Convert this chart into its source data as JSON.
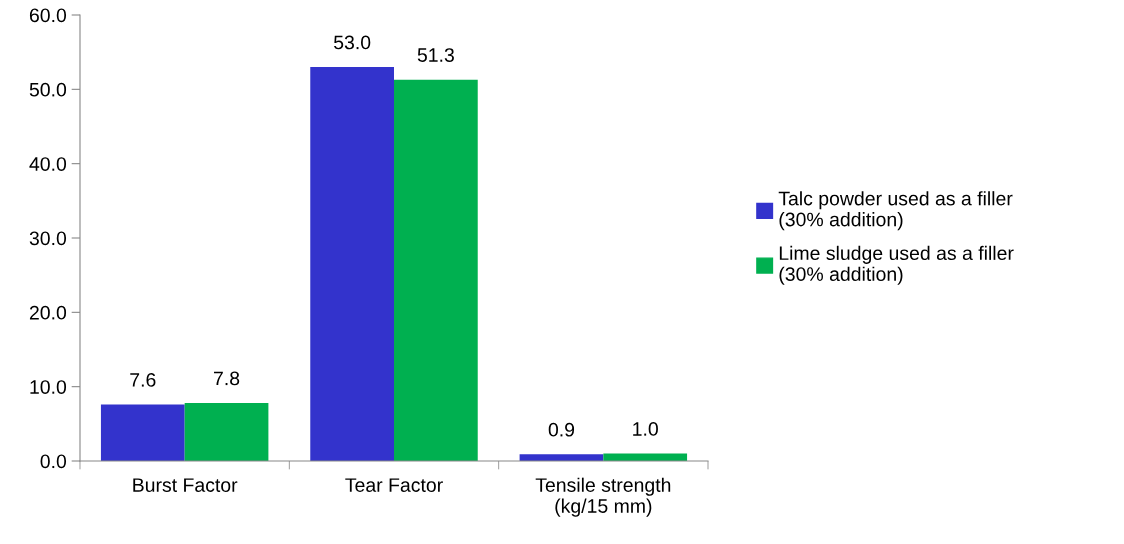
{
  "chart_data": {
    "type": "bar",
    "categories": [
      "Burst Factor",
      "Tear Factor",
      "Tensile strength\n(kg/15 mm)"
    ],
    "series": [
      {
        "name": "Talc powder used as a filler (30% addition)",
        "color": "#3333cc",
        "values": [
          7.6,
          53.0,
          0.9
        ],
        "value_labels": [
          "7.6",
          "53.0",
          "0.9"
        ]
      },
      {
        "name": "Lime sludge used as a filler (30% addition)",
        "color": "#00b050",
        "values": [
          7.8,
          51.3,
          1.0
        ],
        "value_labels": [
          "7.8",
          "51.3",
          "1.0"
        ]
      }
    ],
    "ylim": [
      0,
      60
    ],
    "yticks": [
      {
        "value": 0,
        "label": "0.0"
      },
      {
        "value": 10,
        "label": "10.0"
      },
      {
        "value": 20,
        "label": "20.0"
      },
      {
        "value": 30,
        "label": "30.0"
      },
      {
        "value": 40,
        "label": "40.0"
      },
      {
        "value": 50,
        "label": "50.0"
      },
      {
        "value": 60,
        "label": "60.0"
      }
    ],
    "grid": false,
    "legend": "right"
  }
}
